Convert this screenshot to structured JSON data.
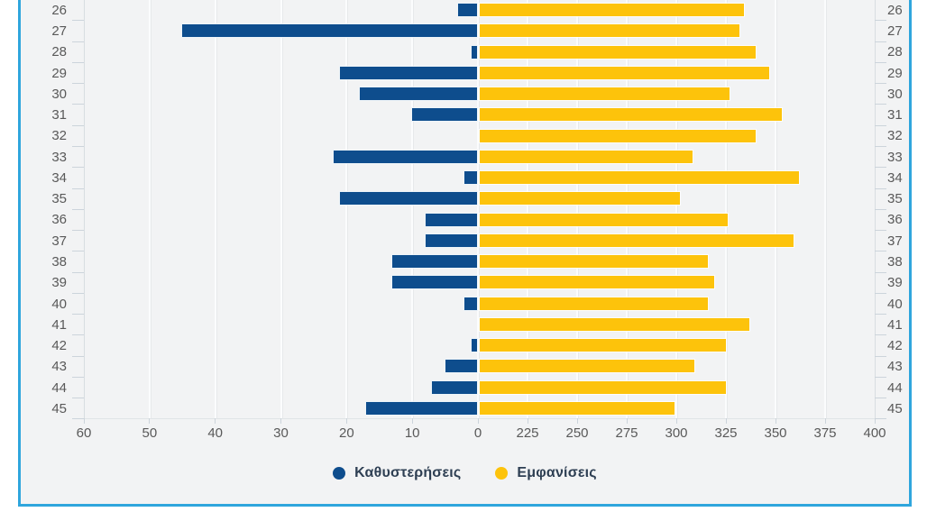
{
  "chart_data": {
    "type": "bar",
    "variant": "diverging-horizontal",
    "title": "",
    "categories": [
      "26",
      "27",
      "28",
      "29",
      "30",
      "31",
      "32",
      "33",
      "34",
      "35",
      "36",
      "37",
      "38",
      "39",
      "40",
      "41",
      "42",
      "43",
      "44",
      "45"
    ],
    "series": [
      {
        "name": "Καθυστερήσεις",
        "color": "#0e4d8d",
        "direction": "left",
        "values": [
          3,
          45,
          1,
          21,
          18,
          10,
          0,
          22,
          2,
          21,
          8,
          8,
          13,
          13,
          2,
          0,
          1,
          5,
          7,
          17
        ]
      },
      {
        "name": "Εμφανίσεις",
        "color": "#fdc30b",
        "direction": "right",
        "values": [
          334,
          332,
          340,
          347,
          327,
          353,
          340,
          308,
          362,
          302,
          326,
          359,
          316,
          319,
          316,
          337,
          325,
          309,
          325,
          299
        ]
      }
    ],
    "x_axis": {
      "left_ticks": [
        60,
        50,
        40,
        30,
        20,
        10,
        0
      ],
      "right_ticks": [
        225,
        250,
        275,
        300,
        325,
        350,
        375,
        400
      ],
      "broken_axis": true
    },
    "y_axis": {
      "labels_on_both_sides": true
    },
    "grid": true,
    "legend": {
      "position": "bottom"
    }
  },
  "frame": {
    "border_color": "#2fa6dd",
    "background_color": "#f2f3f4",
    "axis_label_color": "#595959",
    "legend_text_color": "#2e3f53"
  }
}
